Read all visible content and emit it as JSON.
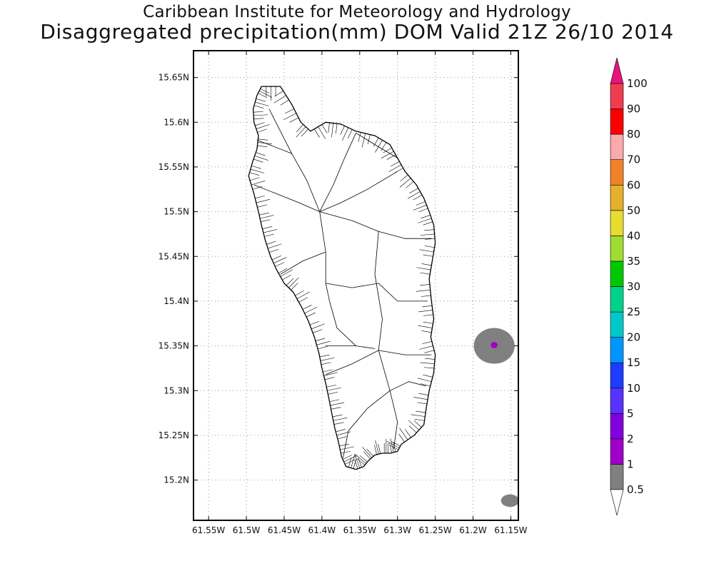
{
  "header": {
    "title": "Caribbean Institute for Meteorology and Hydrology",
    "subtitle": "Disaggregated precipitation(mm) DOM Valid 21Z 26/10 2014"
  },
  "map": {
    "lon_range": [
      -61.57,
      -61.14
    ],
    "lat_range": [
      15.155,
      15.68
    ],
    "lon_ticks": [
      {
        "value": -61.55,
        "label": "61.55W"
      },
      {
        "value": -61.5,
        "label": "61.5W"
      },
      {
        "value": -61.45,
        "label": "61.45W"
      },
      {
        "value": -61.4,
        "label": "61.4W"
      },
      {
        "value": -61.35,
        "label": "61.35W"
      },
      {
        "value": -61.3,
        "label": "61.3W"
      },
      {
        "value": -61.25,
        "label": "61.25W"
      },
      {
        "value": -61.2,
        "label": "61.2W"
      },
      {
        "value": -61.15,
        "label": "61.15W"
      }
    ],
    "lat_ticks": [
      {
        "value": 15.65,
        "label": "15.65N"
      },
      {
        "value": 15.6,
        "label": "15.6N"
      },
      {
        "value": 15.55,
        "label": "15.55N"
      },
      {
        "value": 15.5,
        "label": "15.5N"
      },
      {
        "value": 15.45,
        "label": "15.45N"
      },
      {
        "value": 15.4,
        "label": "15.4N"
      },
      {
        "value": 15.35,
        "label": "15.35N"
      },
      {
        "value": 15.3,
        "label": "15.3N"
      },
      {
        "value": 15.25,
        "label": "15.25N"
      },
      {
        "value": 15.2,
        "label": "15.2N"
      }
    ],
    "grid": true,
    "island_outline": [
      [
        -61.48,
        15.64
      ],
      [
        -61.455,
        15.64
      ],
      [
        -61.44,
        15.62
      ],
      [
        -61.428,
        15.6
      ],
      [
        -61.415,
        15.59
      ],
      [
        -61.395,
        15.6
      ],
      [
        -61.375,
        15.598
      ],
      [
        -61.355,
        15.59
      ],
      [
        -61.33,
        15.585
      ],
      [
        -61.31,
        15.575
      ],
      [
        -61.3,
        15.56
      ],
      [
        -61.29,
        15.545
      ],
      [
        -61.275,
        15.53
      ],
      [
        -61.265,
        15.515
      ],
      [
        -61.258,
        15.5
      ],
      [
        -61.252,
        15.485
      ],
      [
        -61.25,
        15.465
      ],
      [
        -61.254,
        15.445
      ],
      [
        -61.258,
        15.425
      ],
      [
        -61.255,
        15.4
      ],
      [
        -61.252,
        15.38
      ],
      [
        -61.256,
        15.36
      ],
      [
        -61.25,
        15.34
      ],
      [
        -61.252,
        15.32
      ],
      [
        -61.258,
        15.3
      ],
      [
        -61.262,
        15.28
      ],
      [
        -61.265,
        15.262
      ],
      [
        -61.278,
        15.25
      ],
      [
        -61.295,
        15.24
      ],
      [
        -61.3,
        15.232
      ],
      [
        -61.31,
        15.23
      ],
      [
        -61.32,
        15.23
      ],
      [
        -61.33,
        15.228
      ],
      [
        -61.338,
        15.222
      ],
      [
        -61.345,
        15.215
      ],
      [
        -61.355,
        15.212
      ],
      [
        -61.368,
        15.215
      ],
      [
        -61.374,
        15.226
      ],
      [
        -61.378,
        15.242
      ],
      [
        -61.383,
        15.258
      ],
      [
        -61.387,
        15.275
      ],
      [
        -61.391,
        15.292
      ],
      [
        -61.395,
        15.308
      ],
      [
        -61.4,
        15.325
      ],
      [
        -61.404,
        15.342
      ],
      [
        -61.41,
        15.36
      ],
      [
        -61.418,
        15.378
      ],
      [
        -61.428,
        15.395
      ],
      [
        -61.438,
        15.41
      ],
      [
        -61.45,
        15.42
      ],
      [
        -61.46,
        15.435
      ],
      [
        -61.468,
        15.45
      ],
      [
        -61.475,
        15.468
      ],
      [
        -61.48,
        15.485
      ],
      [
        -61.484,
        15.5
      ],
      [
        -61.49,
        15.52
      ],
      [
        -61.497,
        15.54
      ],
      [
        -61.492,
        15.555
      ],
      [
        -61.486,
        15.57
      ],
      [
        -61.484,
        15.585
      ],
      [
        -61.49,
        15.6
      ],
      [
        -61.491,
        15.615
      ],
      [
        -61.486,
        15.63
      ]
    ],
    "watersheds": [
      [
        [
          -61.403,
          15.5
        ],
        [
          -61.42,
          15.535
        ],
        [
          -61.44,
          15.565
        ],
        [
          -61.455,
          15.59
        ],
        [
          -61.47,
          15.615
        ]
      ],
      [
        [
          -61.403,
          15.5
        ],
        [
          -61.385,
          15.53
        ],
        [
          -61.37,
          15.56
        ],
        [
          -61.355,
          15.588
        ]
      ],
      [
        [
          -61.403,
          15.5
        ],
        [
          -61.375,
          15.51
        ],
        [
          -61.34,
          15.525
        ],
        [
          -61.3,
          15.545
        ]
      ],
      [
        [
          -61.403,
          15.5
        ],
        [
          -61.43,
          15.51
        ],
        [
          -61.46,
          15.52
        ],
        [
          -61.49,
          15.53
        ]
      ],
      [
        [
          -61.403,
          15.5
        ],
        [
          -61.395,
          15.455
        ],
        [
          -61.395,
          15.42
        ],
        [
          -61.39,
          15.4
        ]
      ],
      [
        [
          -61.395,
          15.455
        ],
        [
          -61.425,
          15.445
        ],
        [
          -61.455,
          15.43
        ]
      ],
      [
        [
          -61.395,
          15.42
        ],
        [
          -61.36,
          15.415
        ],
        [
          -61.325,
          15.42
        ],
        [
          -61.3,
          15.4
        ],
        [
          -61.26,
          15.4
        ]
      ],
      [
        [
          -61.403,
          15.5
        ],
        [
          -61.36,
          15.49
        ],
        [
          -61.325,
          15.478
        ],
        [
          -61.29,
          15.47
        ],
        [
          -61.255,
          15.47
        ]
      ],
      [
        [
          -61.325,
          15.478
        ],
        [
          -61.33,
          15.43
        ],
        [
          -61.32,
          15.38
        ],
        [
          -61.325,
          15.345
        ]
      ],
      [
        [
          -61.325,
          15.345
        ],
        [
          -61.29,
          15.34
        ],
        [
          -61.255,
          15.34
        ]
      ],
      [
        [
          -61.325,
          15.345
        ],
        [
          -61.36,
          15.33
        ],
        [
          -61.395,
          15.318
        ]
      ],
      [
        [
          -61.325,
          15.345
        ],
        [
          -61.31,
          15.3
        ],
        [
          -61.3,
          15.265
        ],
        [
          -61.305,
          15.235
        ]
      ],
      [
        [
          -61.31,
          15.3
        ],
        [
          -61.34,
          15.28
        ],
        [
          -61.365,
          15.255
        ],
        [
          -61.372,
          15.225
        ]
      ],
      [
        [
          -61.39,
          15.4
        ],
        [
          -61.38,
          15.37
        ],
        [
          -61.355,
          15.35
        ],
        [
          -61.33,
          15.347
        ]
      ],
      [
        [
          -61.355,
          15.35
        ],
        [
          -61.395,
          15.35
        ]
      ],
      [
        [
          -61.31,
          15.3
        ],
        [
          -61.285,
          15.31
        ],
        [
          -61.262,
          15.305
        ]
      ],
      [
        [
          -61.44,
          15.565
        ],
        [
          -61.47,
          15.575
        ],
        [
          -61.486,
          15.58
        ]
      ],
      [
        [
          -61.355,
          15.588
        ],
        [
          -61.33,
          15.575
        ],
        [
          -61.3,
          15.56
        ]
      ]
    ],
    "precip_features": [
      {
        "category": "0.5",
        "center": [
          -61.172,
          15.35
        ],
        "radius": [
          0.027,
          0.02
        ]
      },
      {
        "category": "1-2",
        "center": [
          -61.172,
          15.351
        ],
        "radius": [
          0.0045,
          0.0035
        ]
      },
      {
        "category": "0.5",
        "center": [
          -61.151,
          15.177
        ],
        "radius": [
          0.012,
          0.007
        ]
      }
    ]
  },
  "colorbar": {
    "colors": [
      "#808080",
      "#a000c8",
      "#8200dc",
      "#5a32ff",
      "#1e3cff",
      "#0096ff",
      "#00c8c8",
      "#00d28c",
      "#00c800",
      "#a0dc32",
      "#e6dc32",
      "#e6af2d",
      "#f08228",
      "#faaaaa",
      "#fa0000",
      "#f03c50"
    ],
    "under_color": "#ffffff",
    "over_color": "#e6147d",
    "labels": [
      "0.5",
      "1",
      "2",
      "5",
      "10",
      "15",
      "20",
      "25",
      "30",
      "35",
      "40",
      "50",
      "60",
      "70",
      "80",
      "90",
      "100"
    ]
  }
}
